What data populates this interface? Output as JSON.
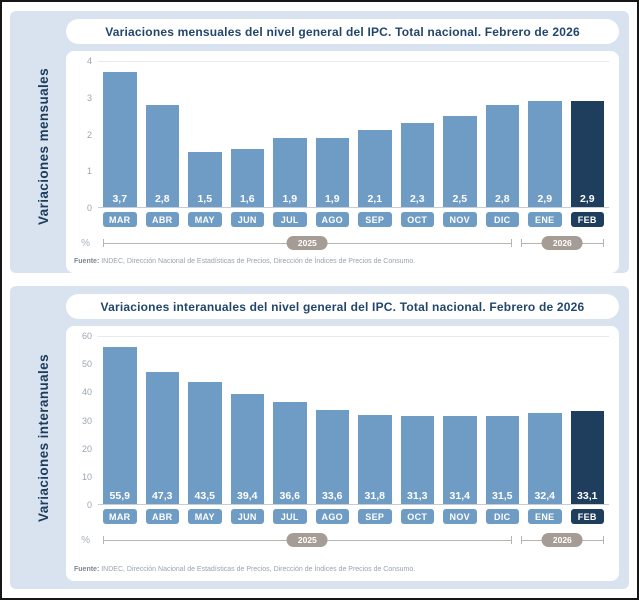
{
  "colors": {
    "panel_bg": "#d9e3ef",
    "bar": "#6f9cc4",
    "bar_highlight": "#1f3d5c",
    "year_pill": "#a59d95",
    "title_text": "#23466d",
    "axis_text": "#9aa6b2"
  },
  "chart_data": [
    {
      "type": "bar",
      "title": "Variaciones mensuales del nivel general del IPC. Total nacional. Febrero de 2026",
      "side_label": "Variaciones mensuales",
      "categories": [
        "MAR",
        "ABR",
        "MAY",
        "JUN",
        "JUL",
        "AGO",
        "SEP",
        "OCT",
        "NOV",
        "DIC",
        "ENE",
        "FEB"
      ],
      "values": [
        3.7,
        2.8,
        1.5,
        1.6,
        1.9,
        1.9,
        2.1,
        2.3,
        2.5,
        2.8,
        2.9,
        2.9
      ],
      "value_labels": [
        "3,7",
        "2,8",
        "1,5",
        "1,6",
        "1,9",
        "1,9",
        "2,1",
        "2,3",
        "2,5",
        "2,8",
        "2,9",
        "2,9"
      ],
      "highlight_index": 11,
      "ylim": [
        0,
        4
      ],
      "yticks": [
        0,
        1,
        2,
        3,
        4
      ],
      "unit_label": "%",
      "year_groups": [
        {
          "label": "2025",
          "span": 10
        },
        {
          "label": "2026",
          "span": 2
        }
      ],
      "fuente_label": "Fuente:",
      "fuente_text": " INDEC, Dirección Nacional de Estadísticas de Precios, Dirección de Índices de Precios de Consumo."
    },
    {
      "type": "bar",
      "title": "Variaciones interanuales del nivel general del IPC. Total nacional. Febrero de 2026",
      "side_label": "Variaciones interanuales",
      "categories": [
        "MAR",
        "ABR",
        "MAY",
        "JUN",
        "JUL",
        "AGO",
        "SEP",
        "OCT",
        "NOV",
        "DIC",
        "ENE",
        "FEB"
      ],
      "values": [
        55.9,
        47.3,
        43.5,
        39.4,
        36.6,
        33.6,
        31.8,
        31.3,
        31.4,
        31.5,
        32.4,
        33.1
      ],
      "value_labels": [
        "55,9",
        "47,3",
        "43,5",
        "39,4",
        "36,6",
        "33,6",
        "31,8",
        "31,3",
        "31,4",
        "31,5",
        "32,4",
        "33,1"
      ],
      "highlight_index": 11,
      "ylim": [
        0,
        60
      ],
      "yticks": [
        0,
        10,
        20,
        30,
        40,
        50,
        60
      ],
      "unit_label": "%",
      "year_groups": [
        {
          "label": "2025",
          "span": 10
        },
        {
          "label": "2026",
          "span": 2
        }
      ],
      "fuente_label": "Fuente:",
      "fuente_text": " INDEC, Dirección Nacional de Estadísticas de Precios, Dirección de Índices de Precios de Consumo."
    }
  ]
}
